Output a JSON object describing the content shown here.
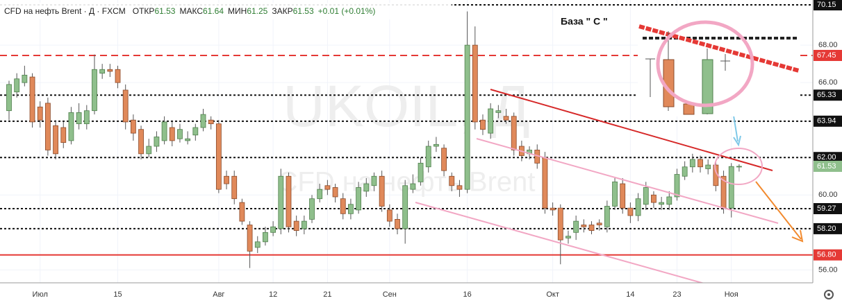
{
  "chart_data": {
    "type": "candlestick",
    "title": "CFD на нефть Brent · Д · FXCM",
    "ohlc_labels": [
      {
        "label": "ОТКР",
        "value": "61.53"
      },
      {
        "label": "МАКС",
        "value": "61.64"
      },
      {
        "label": "МИН",
        "value": "61.25"
      },
      {
        "label": "ЗАКР",
        "value": "61.53"
      }
    ],
    "change": "+0.01 (+0.01%)",
    "watermarks": [
      "UKOIL, Д",
      "CFD на нефть Brent"
    ],
    "annotations": [
      "База \" С \""
    ],
    "categories": [
      null,
      null,
      null,
      null,
      "Июл",
      null,
      null,
      null,
      null,
      null,
      null,
      null,
      null,
      null,
      "15",
      null,
      null,
      null,
      null,
      null,
      null,
      null,
      null,
      null,
      null,
      null,
      null,
      "Авг",
      null,
      null,
      null,
      null,
      null,
      null,
      "12",
      null,
      null,
      null,
      null,
      null,
      null,
      "21",
      null,
      null,
      null,
      null,
      null,
      null,
      null,
      "Сен",
      null,
      null,
      null,
      null,
      null,
      null,
      null,
      null,
      null,
      "16",
      null,
      null,
      null,
      null,
      null,
      null,
      null,
      null,
      null,
      null,
      "Окт",
      null,
      null,
      null,
      null,
      null,
      null,
      null,
      null,
      null,
      "14",
      null,
      null,
      null,
      null,
      null,
      "23",
      null,
      null,
      null,
      null,
      null,
      null,
      "Ноя",
      null
    ],
    "open": [
      64.5,
      65.5,
      66.0,
      66.3,
      64.7,
      64.9,
      63.7,
      63.6,
      62.9,
      63.8,
      63.8,
      64.5,
      66.5,
      66.7,
      66.7,
      65.6,
      64.0,
      63.5,
      62.2,
      62.6,
      62.9,
      63.6,
      63.0,
      62.9,
      63.2,
      63.6,
      64.0,
      63.8,
      61.0,
      61.0,
      59.6,
      58.4,
      57.2,
      57.5,
      58.0,
      58.2,
      61.0,
      58.6,
      58.2,
      58.7,
      59.8,
      60.5,
      60.4,
      59.8,
      59.0,
      59.2,
      60.2,
      60.5,
      61.0,
      59.2,
      58.7,
      58.2,
      60.3,
      60.7,
      61.5,
      62.6,
      62.5,
      61.0,
      60.5,
      60.3,
      68.0,
      64.0,
      63.3,
      64.4,
      64.2,
      64.2,
      62.6,
      62.2,
      62.4,
      62.0,
      59.3,
      59.3,
      57.7,
      58.0,
      58.4,
      58.4,
      58.5,
      58.3,
      59.4,
      60.6,
      59.3,
      58.9,
      59.5,
      60.0,
      59.5,
      59.5,
      59.9,
      61.0,
      61.5,
      61.9,
      61.4,
      61.6,
      61.0,
      59.3,
      61.53
    ],
    "high": [
      66.1,
      66.5,
      66.9,
      66.5,
      65.0,
      65.2,
      64.0,
      63.9,
      64.7,
      64.9,
      64.8,
      67.5,
      67.0,
      67.0,
      66.9,
      65.9,
      64.3,
      63.7,
      63.0,
      63.4,
      64.2,
      63.9,
      63.8,
      63.4,
      63.8,
      64.6,
      64.2,
      64.0,
      61.3,
      61.3,
      59.8,
      58.6,
      57.8,
      58.3,
      58.6,
      61.4,
      61.2,
      58.9,
      58.9,
      60.0,
      60.6,
      60.8,
      60.6,
      60.1,
      59.8,
      60.7,
      60.9,
      61.2,
      61.3,
      59.5,
      59.0,
      60.8,
      61.1,
      62.0,
      62.9,
      63.1,
      62.7,
      61.2,
      60.8,
      69.8,
      69.0,
      64.3,
      64.9,
      64.8,
      64.6,
      64.4,
      62.9,
      62.6,
      62.7,
      62.3,
      59.6,
      59.5,
      58.1,
      58.9,
      58.7,
      58.6,
      58.7,
      59.7,
      60.9,
      60.9,
      59.6,
      60.1,
      60.7,
      60.2,
      59.9,
      60.2,
      61.4,
      61.8,
      62.2,
      62.1,
      61.9,
      61.8,
      61.3,
      61.7,
      61.64
    ],
    "low": [
      64.0,
      65.2,
      65.8,
      63.6,
      63.6,
      62.1,
      61.9,
      62.5,
      62.7,
      63.5,
      63.5,
      64.3,
      66.2,
      66.3,
      65.7,
      63.5,
      62.9,
      61.9,
      62.0,
      62.3,
      62.7,
      62.6,
      62.8,
      62.7,
      62.9,
      63.4,
      63.5,
      60.1,
      60.3,
      59.5,
      58.4,
      56.1,
      56.9,
      57.3,
      57.8,
      57.9,
      58.0,
      57.8,
      57.9,
      58.5,
      59.6,
      60.0,
      59.6,
      58.7,
      58.7,
      59.0,
      59.9,
      60.2,
      59.1,
      58.3,
      57.9,
      57.4,
      60.1,
      60.5,
      61.2,
      62.3,
      61.0,
      60.2,
      59.9,
      60.1,
      63.5,
      63.2,
      63.0,
      64.1,
      63.8,
      62.1,
      61.8,
      61.9,
      61.4,
      59.0,
      58.9,
      56.3,
      57.4,
      57.6,
      58.0,
      57.9,
      58.1,
      58.0,
      59.2,
      59.0,
      58.5,
      58.6,
      59.2,
      59.3,
      59.2,
      59.2,
      59.7,
      60.8,
      61.2,
      61.2,
      61.1,
      60.2,
      59.0,
      58.8,
      61.25
    ],
    "close": [
      65.9,
      66.2,
      66.4,
      63.9,
      64.0,
      62.4,
      62.2,
      62.8,
      64.4,
      64.4,
      64.5,
      66.7,
      66.7,
      66.6,
      66.0,
      63.9,
      63.3,
      62.2,
      62.6,
      63.1,
      63.9,
      62.9,
      63.5,
      63.0,
      63.6,
      64.3,
      63.8,
      60.3,
      60.6,
      59.8,
      58.6,
      57.0,
      57.5,
      58.0,
      58.3,
      61.0,
      58.3,
      58.1,
      58.6,
      59.8,
      60.3,
      60.3,
      59.9,
      59.0,
      59.5,
      60.4,
      60.6,
      61.0,
      59.4,
      58.6,
      58.2,
      60.5,
      60.6,
      61.7,
      62.6,
      62.7,
      61.3,
      60.5,
      60.3,
      68.0,
      63.9,
      63.5,
      64.6,
      64.5,
      64.0,
      62.4,
      62.1,
      62.4,
      61.7,
      59.3,
      59.2,
      57.6,
      57.8,
      58.6,
      58.3,
      58.1,
      58.4,
      59.4,
      60.7,
      59.3,
      58.9,
      59.8,
      60.4,
      59.6,
      59.6,
      59.9,
      61.1,
      61.5,
      61.9,
      61.5,
      61.6,
      60.5,
      59.3,
      61.52,
      61.53
    ],
    "last_price_label": "61.53",
    "up_color": "#8fbf8c",
    "down_color": "#e0895a",
    "ylim": [
      55.31,
      70.41
    ],
    "yticks": [
      {
        "value": 68,
        "label": "68.00"
      },
      {
        "value": 66,
        "label": "66.00"
      },
      {
        "value": 60,
        "label": "60.00"
      },
      {
        "value": 56,
        "label": "56.00"
      }
    ],
    "grid": true,
    "levels": [
      {
        "value": 70.15,
        "label": "70.15",
        "color": "#111111",
        "style": "dotted"
      },
      {
        "value": 67.45,
        "label": "67.45",
        "color": "#e53935",
        "style": "dashed"
      },
      {
        "value": 65.33,
        "label": "65.33",
        "color": "#111111",
        "style": "dotted"
      },
      {
        "value": 63.94,
        "label": "63.94",
        "color": "#111111",
        "style": "dotted"
      },
      {
        "value": 62,
        "label": "62.00",
        "color": "#111111",
        "style": "dotted"
      },
      {
        "value": 59.27,
        "label": "59.27",
        "color": "#111111",
        "style": "dotted"
      },
      {
        "value": 58.2,
        "label": "58.20",
        "color": "#111111",
        "style": "dotted"
      },
      {
        "value": 56.8,
        "label": "56.80",
        "color": "#e53935",
        "style": "solid"
      }
    ]
  }
}
